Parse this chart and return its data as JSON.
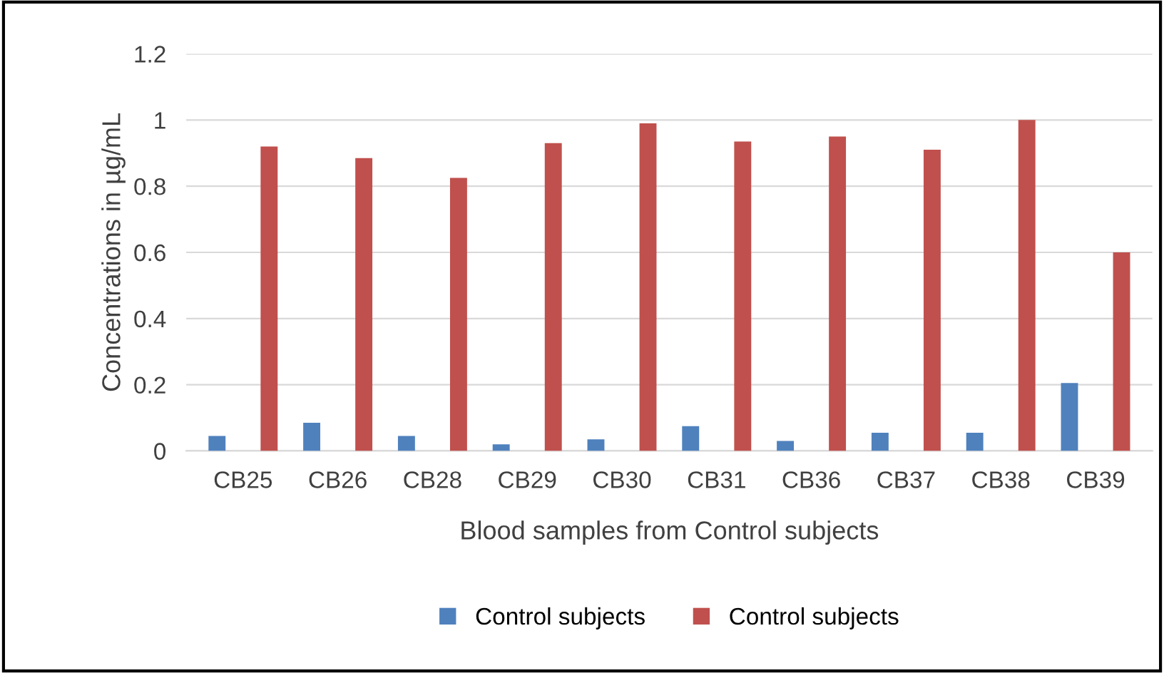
{
  "chart_data": {
    "type": "bar",
    "xlabel": "Blood samples from Control subjects",
    "ylabel": "Concentrations in µg/mL",
    "categories": [
      "CB25",
      "CB26",
      "CB28",
      "CB29",
      "CB30",
      "CB31",
      "CB36",
      "CB37",
      "CB38",
      "CB39"
    ],
    "series": [
      {
        "name": "Control subjects",
        "color": "#4f81bd",
        "values": [
          0.045,
          0.085,
          0.045,
          0.02,
          0.035,
          0.075,
          0.03,
          0.055,
          0.055,
          0.205
        ]
      },
      {
        "name": "Control subjects",
        "color": "#c0504d",
        "values": [
          0.92,
          0.885,
          0.825,
          0.93,
          0.99,
          0.935,
          0.95,
          0.91,
          1.0,
          0.6
        ]
      }
    ],
    "ylim": [
      0,
      1.2
    ],
    "yticks": [
      0,
      0.2,
      0.4,
      0.6,
      0.8,
      1,
      1.2
    ],
    "grid": "y",
    "legend": "bottom"
  }
}
